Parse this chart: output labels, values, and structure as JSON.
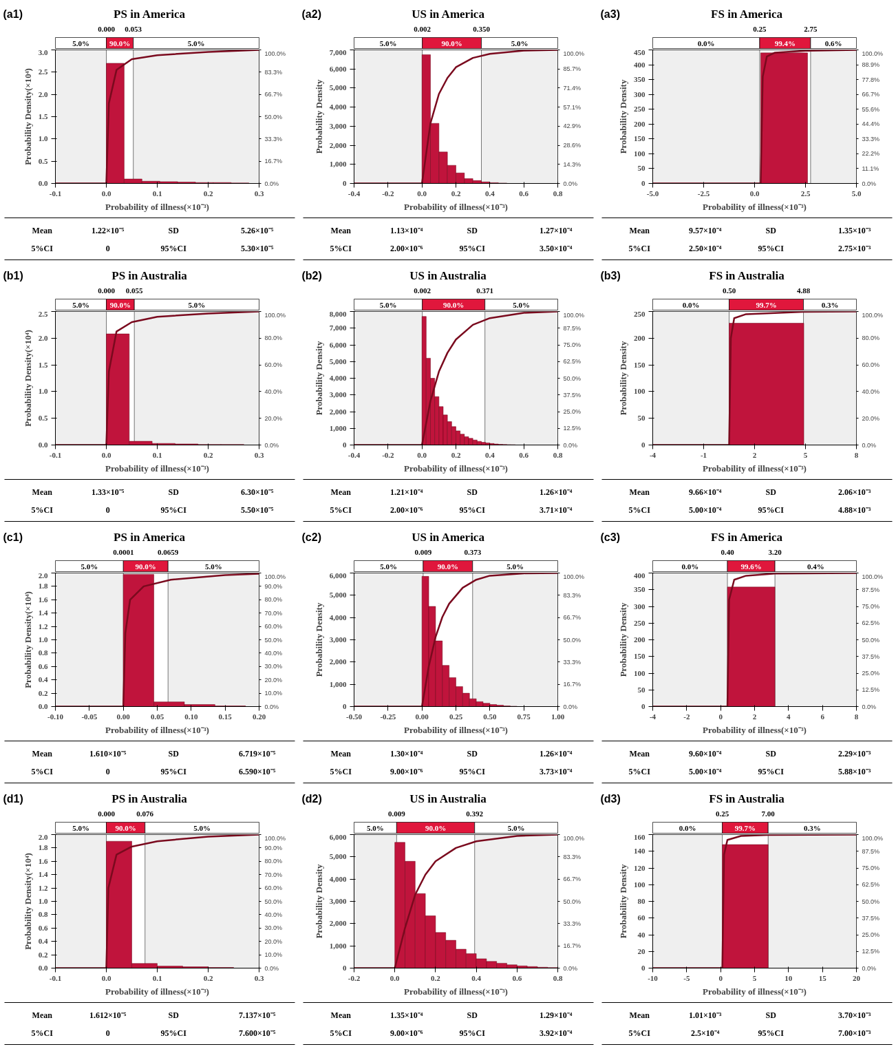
{
  "chart_data": [
    {
      "type": "histogram",
      "title": "PS in America",
      "xlabel": "Probability of illness(×10⁻³)",
      "ylabel": "Probability Density(×10⁴)",
      "annotations": [
        "(a1)",
        "Mean",
        "1.22×10⁻⁵",
        "SD",
        "5.26×10⁻⁵",
        "5%CI",
        "0",
        "95%CI",
        "5.30×10⁻⁵"
      ],
      "xlim": [
        -0.1,
        0.3
      ],
      "xticks": [
        -0.1,
        {
          "value": 0,
          "label": "0.0"
        },
        0.1,
        0.2,
        0.3
      ],
      "ylim": [
        0,
        3.0
      ],
      "yticks": [
        {
          "value": 0,
          "label": "0.0"
        },
        0.5,
        {
          "value": 1,
          "label": "1.0"
        },
        1.5,
        {
          "value": 2,
          "label": "2.0"
        },
        2.5,
        {
          "value": 3,
          "label": "3.0"
        }
      ],
      "y2lim": [
        0,
        100
      ],
      "y2ticks": [
        {
          "value": 0,
          "label": "0.0%"
        },
        {
          "value": 16.7,
          "label": "16.7%"
        },
        {
          "value": 33.3,
          "label": "33.3%"
        },
        {
          "value": 50,
          "label": "50.0%"
        },
        {
          "value": 66.7,
          "label": "66.7%"
        },
        {
          "value": 83.3,
          "label": "83.3%"
        },
        {
          "value": 100,
          "label": "100.0%"
        }
      ],
      "color": "#c0143c",
      "bins": [
        0,
        0.035,
        0.07,
        0.105,
        0.14,
        0.175,
        0.21,
        0.245,
        0.28
      ],
      "values": [
        2.7,
        0.1,
        0.05,
        0.04,
        0.03,
        0.02,
        0.02,
        0.01
      ],
      "series": [
        {
          "type": "line",
          "axis": "y2",
          "color": "#7a0a1e",
          "x": [
            -0.1,
            0,
            0.005,
            0.02,
            0.05,
            0.1,
            0.2,
            0.3
          ],
          "values": [
            0,
            0,
            60,
            85,
            93,
            96,
            98.5,
            100
          ]
        }
      ],
      "ref_lines": [
        {
          "axis": "x",
          "value": 0.0,
          "label": "0.000"
        },
        {
          "axis": "x",
          "value": 0.053,
          "label": "0.053"
        }
      ],
      "bands": [
        {
          "axis": "x",
          "from": -0.1,
          "to": 0.0,
          "label": "5.0%",
          "color": "#efefef"
        },
        {
          "axis": "x",
          "from": 0.0,
          "to": 0.053,
          "label": "90.0%"
        },
        {
          "axis": "x",
          "from": 0.053,
          "to": 0.3,
          "label": "5.0%",
          "color": "#efefef"
        }
      ]
    },
    {
      "type": "histogram",
      "title": "US in America",
      "xlabel": "Probability of illness(×10⁻³)",
      "ylabel": "Probability Density",
      "annotations": [
        "(a2)",
        "Mean",
        "1.13×10⁻⁴",
        "SD",
        "1.27×10⁻⁴",
        "5%CI",
        "2.00×10⁻⁶",
        "95%CI",
        "3.50×10⁻⁴"
      ],
      "xlim": [
        -0.4,
        0.8
      ],
      "xticks": [
        -0.4,
        -0.2,
        {
          "value": 0,
          "label": "0.0"
        },
        0.2,
        0.4,
        0.6,
        0.8
      ],
      "ylim": [
        0,
        7000
      ],
      "yticks": [
        0,
        {
          "value": 1000,
          "label": "1,000"
        },
        {
          "value": 2000,
          "label": "2,000"
        },
        {
          "value": 3000,
          "label": "3,000"
        },
        {
          "value": 4000,
          "label": "4,000"
        },
        {
          "value": 5000,
          "label": "5,000"
        },
        {
          "value": 6000,
          "label": "6,000"
        },
        {
          "value": 7000,
          "label": "7,000"
        }
      ],
      "y2lim": [
        0,
        100
      ],
      "y2ticks": [
        {
          "value": 0,
          "label": "0.0%"
        },
        {
          "value": 14.3,
          "label": "14.3%"
        },
        {
          "value": 28.6,
          "label": "28.6%"
        },
        {
          "value": 42.9,
          "label": "42.9%"
        },
        {
          "value": 57.1,
          "label": "57.1%"
        },
        {
          "value": 71.4,
          "label": "71.4%"
        },
        {
          "value": 85.7,
          "label": "85.7%"
        },
        {
          "value": 100,
          "label": "100.0%"
        }
      ],
      "color": "#c0143c",
      "bins": [
        0,
        0.05,
        0.1,
        0.15,
        0.2,
        0.25,
        0.3,
        0.35,
        0.4,
        0.45,
        0.5,
        0.55,
        0.6
      ],
      "values": [
        6750,
        3150,
        1650,
        950,
        550,
        250,
        150,
        80,
        40,
        20,
        null,
        null
      ],
      "series": [
        {
          "type": "line",
          "axis": "y2",
          "color": "#7a0a1e",
          "x": [
            -0.4,
            0,
            0.05,
            0.1,
            0.15,
            0.2,
            0.3,
            0.4,
            0.6,
            0.8
          ],
          "values": [
            0,
            0,
            45,
            67,
            79,
            87,
            94,
            97,
            99.5,
            100
          ]
        }
      ],
      "ref_lines": [
        {
          "axis": "x",
          "value": 0.002,
          "label": "0.002"
        },
        {
          "axis": "x",
          "value": 0.35,
          "label": "0.350"
        }
      ],
      "bands": [
        {
          "axis": "x",
          "from": -0.4,
          "to": 0.002,
          "label": "5.0%",
          "color": "#efefef"
        },
        {
          "axis": "x",
          "from": 0.002,
          "to": 0.35,
          "label": "90.0%"
        },
        {
          "axis": "x",
          "from": 0.35,
          "to": 0.8,
          "label": "5.0%",
          "color": "#efefef"
        }
      ]
    },
    {
      "type": "histogram",
      "title": "FS in America",
      "xlabel": "Probability of illness(×10⁻³)",
      "ylabel": "Probability Density",
      "annotations": [
        "(a3)",
        "Mean",
        "9.57×10⁻⁴",
        "SD",
        "1.35×10⁻³",
        "5%CI",
        "2.50×10⁻⁴",
        "95%CI",
        "2.75×10⁻³"
      ],
      "xlim": [
        -5,
        5
      ],
      "xticks": [
        {
          "value": -5,
          "label": "-5.0"
        },
        -2.5,
        {
          "value": 0,
          "label": "0.0"
        },
        2.5,
        {
          "value": 5,
          "label": "5.0"
        }
      ],
      "ylim": [
        0,
        450
      ],
      "yticks": [
        0,
        50,
        100,
        150,
        200,
        250,
        300,
        350,
        400,
        450
      ],
      "y2lim": [
        0,
        100
      ],
      "y2ticks": [
        {
          "value": 0,
          "label": "0.0%"
        },
        {
          "value": 11.1,
          "label": "11.1%"
        },
        {
          "value": 22.2,
          "label": "22.2%"
        },
        {
          "value": 33.3,
          "label": "33.3%"
        },
        {
          "value": 44.4,
          "label": "44.4%"
        },
        {
          "value": 55.6,
          "label": "55.6%"
        },
        {
          "value": 66.7,
          "label": "66.7%"
        },
        {
          "value": 77.8,
          "label": "77.8%"
        },
        {
          "value": 88.9,
          "label": "88.9%"
        },
        {
          "value": 100,
          "label": "100.0%"
        }
      ],
      "color": "#c0143c",
      "bins": [
        0.3,
        2.6
      ],
      "values": [
        440
      ],
      "series": [
        {
          "type": "line",
          "axis": "y2",
          "color": "#7a0a1e",
          "x": [
            -5,
            0.3,
            0.4,
            0.6,
            1.0,
            2.5,
            5
          ],
          "values": [
            0,
            0,
            80,
            95,
            98,
            99.4,
            100
          ]
        }
      ],
      "ref_lines": [
        {
          "axis": "x",
          "value": 0.25,
          "label": "0.25"
        },
        {
          "axis": "x",
          "value": 2.75,
          "label": "2.75"
        }
      ],
      "bands": [
        {
          "axis": "x",
          "from": -5,
          "to": 0.25,
          "label": "0.0%",
          "color": "#efefef"
        },
        {
          "axis": "x",
          "from": 0.25,
          "to": 2.75,
          "label": "99.4%"
        },
        {
          "axis": "x",
          "from": 2.75,
          "to": 5,
          "label": "0.6%",
          "color": "#efefef"
        }
      ]
    },
    {
      "type": "histogram",
      "title": "PS in Australia",
      "xlabel": "Probability of illness(×10⁻³)",
      "ylabel": "Probability Density(×10⁴)",
      "annotations": [
        "(b1)",
        "Mean",
        "1.33×10⁻⁵",
        "SD",
        "6.30×10⁻⁵",
        "5%CI",
        "0",
        "95%CI",
        "5.50×10⁻⁵"
      ],
      "xlim": [
        -0.1,
        0.3
      ],
      "xticks": [
        -0.1,
        {
          "value": 0,
          "label": "0.0"
        },
        0.1,
        0.2,
        0.3
      ],
      "ylim": [
        0,
        2.5
      ],
      "yticks": [
        {
          "value": 0,
          "label": "0.0"
        },
        0.5,
        {
          "value": 1,
          "label": "1.0"
        },
        1.5,
        {
          "value": 2,
          "label": "2.0"
        },
        2.5
      ],
      "y2lim": [
        0,
        100
      ],
      "y2ticks": [
        {
          "value": 0,
          "label": "0.0%"
        },
        {
          "value": 20,
          "label": "20.0%"
        },
        {
          "value": 40,
          "label": "40.0%"
        },
        {
          "value": 60,
          "label": "60.0%"
        },
        {
          "value": 80,
          "label": "80.0%"
        },
        {
          "value": 100,
          "label": "100.0%"
        }
      ],
      "color": "#c0143c",
      "bins": [
        0,
        0.045,
        0.09,
        0.135,
        0.18,
        0.225,
        0.27
      ],
      "values": [
        2.08,
        0.07,
        0.03,
        0.02,
        0.01,
        0.01
      ],
      "series": [
        {
          "type": "line",
          "axis": "y2",
          "color": "#7a0a1e",
          "x": [
            -0.1,
            0,
            0.005,
            0.02,
            0.05,
            0.1,
            0.2,
            0.3
          ],
          "values": [
            0,
            0,
            55,
            85,
            92,
            96,
            98.5,
            100
          ]
        }
      ],
      "ref_lines": [
        {
          "axis": "x",
          "value": 0.0,
          "label": "0.000"
        },
        {
          "axis": "x",
          "value": 0.055,
          "label": "0.055"
        }
      ],
      "bands": [
        {
          "axis": "x",
          "from": -0.1,
          "to": 0.0,
          "label": "5.0%",
          "color": "#efefef"
        },
        {
          "axis": "x",
          "from": 0.0,
          "to": 0.055,
          "label": "90.0%"
        },
        {
          "axis": "x",
          "from": 0.055,
          "to": 0.3,
          "label": "5.0%",
          "color": "#efefef"
        }
      ]
    },
    {
      "type": "histogram",
      "title": "US in Australia",
      "xlabel": "Probability of illness(×10⁻³)",
      "ylabel": "Probability Density",
      "annotations": [
        "(b2)",
        "Mean",
        "1.21×10⁻⁴",
        "SD",
        "1.26×10⁻⁴",
        "5%CI",
        "2.00×10⁻⁶",
        "95%CI",
        "3.71×10⁻⁴"
      ],
      "xlim": [
        -0.4,
        0.8
      ],
      "xticks": [
        -0.4,
        -0.2,
        {
          "value": 0,
          "label": "0.0"
        },
        0.2,
        0.4,
        0.6,
        0.8
      ],
      "ylim": [
        0,
        8000
      ],
      "yticks": [
        0,
        {
          "value": 1000,
          "label": "1,000"
        },
        {
          "value": 2000,
          "label": "2,000"
        },
        {
          "value": 3000,
          "label": "3,000"
        },
        {
          "value": 4000,
          "label": "4,000"
        },
        {
          "value": 5000,
          "label": "5,000"
        },
        {
          "value": 6000,
          "label": "6,000"
        },
        {
          "value": 7000,
          "label": "7,000"
        },
        {
          "value": 8000,
          "label": "8,000"
        }
      ],
      "y2lim": [
        0,
        100
      ],
      "y2ticks": [
        {
          "value": 0,
          "label": "0.0%"
        },
        {
          "value": 12.5,
          "label": "12.5%"
        },
        {
          "value": 25,
          "label": "25.0%"
        },
        {
          "value": 37.5,
          "label": "37.5%"
        },
        {
          "value": 50,
          "label": "50.0%"
        },
        {
          "value": 62.5,
          "label": "62.5%"
        },
        {
          "value": 75,
          "label": "75.0%"
        },
        {
          "value": 87.5,
          "label": "87.5%"
        },
        {
          "value": 100,
          "label": "100.0%"
        }
      ],
      "color": "#c0143c",
      "bins": [
        0,
        0.025,
        0.05,
        0.075,
        0.1,
        0.125,
        0.15,
        0.175,
        0.2,
        0.225,
        0.25,
        0.275,
        0.3,
        0.325,
        0.35,
        0.375,
        0.4,
        0.425,
        0.45,
        0.475,
        0.5,
        0.525,
        0.55,
        0.575,
        0.6
      ],
      "values": [
        7700,
        5200,
        4000,
        2900,
        2300,
        1800,
        1400,
        1100,
        850,
        650,
        500,
        400,
        300,
        220,
        160,
        120,
        90,
        60,
        40,
        30,
        20,
        15,
        null,
        null
      ],
      "series": [
        {
          "type": "line",
          "axis": "y2",
          "color": "#7a0a1e",
          "x": [
            -0.4,
            0,
            0.05,
            0.1,
            0.15,
            0.2,
            0.3,
            0.4,
            0.6,
            0.8
          ],
          "values": [
            0,
            0,
            33,
            55,
            69,
            79,
            90,
            95,
            99,
            100
          ]
        }
      ],
      "ref_lines": [
        {
          "axis": "x",
          "value": 0.002,
          "label": "0.002"
        },
        {
          "axis": "x",
          "value": 0.371,
          "label": "0.371"
        }
      ],
      "bands": [
        {
          "axis": "x",
          "from": -0.4,
          "to": 0.002,
          "label": "5.0%",
          "color": "#efefef"
        },
        {
          "axis": "x",
          "from": 0.002,
          "to": 0.371,
          "label": "90.0%"
        },
        {
          "axis": "x",
          "from": 0.371,
          "to": 0.8,
          "label": "5.0%",
          "color": "#efefef"
        }
      ]
    },
    {
      "type": "histogram",
      "title": "FS in Australia",
      "xlabel": "Probability of illness(×10⁻³)",
      "ylabel": "Probability Density",
      "annotations": [
        "(b3)",
        "Mean",
        "9.66×10⁻⁴",
        "SD",
        "2.06×10⁻³",
        "5%CI",
        "5.00×10⁻⁴",
        "95%CI",
        "4.88×10⁻³"
      ],
      "xlim": [
        -4,
        8
      ],
      "xticks": [
        -4,
        -1,
        2,
        5,
        8
      ],
      "ylim": [
        0,
        250
      ],
      "yticks": [
        0,
        50,
        100,
        150,
        200,
        250
      ],
      "y2lim": [
        0,
        100
      ],
      "y2ticks": [
        {
          "value": 0,
          "label": "0.0%"
        },
        {
          "value": 20,
          "label": "20.0%"
        },
        {
          "value": 40,
          "label": "40.0%"
        },
        {
          "value": 60,
          "label": "60.0%"
        },
        {
          "value": 80,
          "label": "80.0%"
        },
        {
          "value": 100,
          "label": "100.0%"
        }
      ],
      "color": "#c0143c",
      "bins": [
        0.5,
        4.9
      ],
      "values": [
        228
      ],
      "series": [
        {
          "type": "line",
          "axis": "y2",
          "color": "#7a0a1e",
          "x": [
            -4,
            0.5,
            0.6,
            0.8,
            1.5,
            4.88,
            8
          ],
          "values": [
            0,
            0,
            80,
            95,
            98,
            99.7,
            100
          ]
        }
      ],
      "ref_lines": [
        {
          "axis": "x",
          "value": 0.5,
          "label": "0.50"
        },
        {
          "axis": "x",
          "value": 4.88,
          "label": "4.88"
        }
      ],
      "bands": [
        {
          "axis": "x",
          "from": -4,
          "to": 0.5,
          "label": "0.0%",
          "color": "#efefef"
        },
        {
          "axis": "x",
          "from": 0.5,
          "to": 4.88,
          "label": "99.7%"
        },
        {
          "axis": "x",
          "from": 4.88,
          "to": 8,
          "label": "0.3%",
          "color": "#efefef"
        }
      ]
    },
    {
      "type": "histogram",
      "title": "PS in America",
      "xlabel": "Probability of illness(×10⁻³)",
      "ylabel": "Probability Density(×10⁴)",
      "annotations": [
        "(c1)",
        "Mean",
        "1.610×10⁻⁵",
        "SD",
        "6.719×10⁻⁵",
        "5%CI",
        "0",
        "95%CI",
        "6.590×10⁻⁵"
      ],
      "xlim": [
        -0.1,
        0.2
      ],
      "xticks": [
        {
          "value": -0.1,
          "label": "-0.10"
        },
        {
          "value": -0.05,
          "label": "-0.05"
        },
        {
          "value": 0,
          "label": "0.00"
        },
        {
          "value": 0.05,
          "label": "0.05"
        },
        {
          "value": 0.1,
          "label": "0.10"
        },
        {
          "value": 0.15,
          "label": "0.15"
        },
        {
          "value": 0.2,
          "label": "0.20"
        }
      ],
      "ylim": [
        0,
        2.0
      ],
      "yticks": [
        {
          "value": 0,
          "label": "0.0"
        },
        0.2,
        0.4,
        0.6,
        0.8,
        {
          "value": 1,
          "label": "1.0"
        },
        1.2,
        1.4,
        1.6,
        1.8,
        {
          "value": 2,
          "label": "2.0"
        }
      ],
      "y2lim": [
        0,
        100
      ],
      "y2ticks": [
        {
          "value": 0,
          "label": "0.0%"
        },
        {
          "value": 10,
          "label": "10.0%"
        },
        {
          "value": 20,
          "label": "20.0%"
        },
        {
          "value": 30,
          "label": "30.0%"
        },
        {
          "value": 40,
          "label": "40.0%"
        },
        {
          "value": 50,
          "label": "50.0%"
        },
        {
          "value": 60,
          "label": "60.0%"
        },
        {
          "value": 70,
          "label": "70.0%"
        },
        {
          "value": 80,
          "label": "80.0%"
        },
        {
          "value": 90,
          "label": "90.0%"
        },
        {
          "value": 100,
          "label": "100.0%"
        }
      ],
      "color": "#c0143c",
      "bins": [
        0,
        0.045,
        0.09,
        0.135,
        0.18
      ],
      "values": [
        1.98,
        0.07,
        0.03,
        0.01
      ],
      "series": [
        {
          "type": "line",
          "axis": "y2",
          "color": "#7a0a1e",
          "x": [
            -0.1,
            0,
            0.003,
            0.01,
            0.03,
            0.07,
            0.15,
            0.2
          ],
          "values": [
            0,
            0,
            55,
            80,
            90,
            95,
            98.5,
            99.5
          ]
        }
      ],
      "ref_lines": [
        {
          "axis": "x",
          "value": 0.0001,
          "label": "0.0001"
        },
        {
          "axis": "x",
          "value": 0.0659,
          "label": "0.0659"
        }
      ],
      "bands": [
        {
          "axis": "x",
          "from": -0.1,
          "to": 0.0001,
          "label": "5.0%",
          "color": "#efefef"
        },
        {
          "axis": "x",
          "from": 0.0001,
          "to": 0.0659,
          "label": "90.0%"
        },
        {
          "axis": "x",
          "from": 0.0659,
          "to": 0.2,
          "label": "5.0%",
          "color": "#efefef"
        }
      ]
    },
    {
      "type": "histogram",
      "title": "US in America",
      "xlabel": "Probability of illness(×10⁻³)",
      "ylabel": "Probability Density",
      "annotations": [
        "(c2)",
        "Mean",
        "1.30×10⁻⁴",
        "SD",
        "1.26×10⁻⁴",
        "5%CI",
        "9.00×10⁻⁶",
        "95%CI",
        "3.73×10⁻⁴"
      ],
      "xlim": [
        -0.5,
        1.0
      ],
      "xticks": [
        {
          "value": -0.5,
          "label": "-0.50"
        },
        {
          "value": -0.25,
          "label": "-0.25"
        },
        {
          "value": 0,
          "label": "0.00"
        },
        {
          "value": 0.25,
          "label": "0.25"
        },
        {
          "value": 0.5,
          "label": "0.50"
        },
        {
          "value": 0.75,
          "label": "0.75"
        },
        {
          "value": 1.0,
          "label": "1.00"
        }
      ],
      "ylim": [
        0,
        6000
      ],
      "yticks": [
        0,
        {
          "value": 1000,
          "label": "1,000"
        },
        {
          "value": 2000,
          "label": "2,000"
        },
        {
          "value": 3000,
          "label": "3,000"
        },
        {
          "value": 4000,
          "label": "4,000"
        },
        {
          "value": 5000,
          "label": "5,000"
        },
        {
          "value": 6000,
          "label": "6,000"
        }
      ],
      "y2lim": [
        0,
        100
      ],
      "y2ticks": [
        {
          "value": 0,
          "label": "0.0%"
        },
        {
          "value": 16.7,
          "label": "16.7%"
        },
        {
          "value": 33.3,
          "label": "33.3%"
        },
        {
          "value": 50,
          "label": "50.0%"
        },
        {
          "value": 66.7,
          "label": "66.7%"
        },
        {
          "value": 83.3,
          "label": "83.3%"
        },
        {
          "value": 100,
          "label": "100.0%"
        }
      ],
      "color": "#c0143c",
      "bins": [
        0,
        0.05,
        0.1,
        0.15,
        0.2,
        0.25,
        0.3,
        0.35,
        0.4,
        0.45,
        0.5,
        0.55,
        0.6,
        0.65,
        0.7
      ],
      "values": [
        5850,
        4500,
        2950,
        1850,
        1300,
        900,
        600,
        350,
        220,
        150,
        90,
        60,
        30,
        15
      ],
      "series": [
        {
          "type": "line",
          "axis": "y2",
          "color": "#7a0a1e",
          "x": [
            -0.5,
            0,
            0.05,
            0.1,
            0.15,
            0.2,
            0.3,
            0.4,
            0.5,
            0.75,
            1.0
          ],
          "values": [
            0,
            0,
            30,
            52,
            67,
            77,
            89,
            95,
            98,
            99.8,
            100
          ]
        }
      ],
      "ref_lines": [
        {
          "axis": "x",
          "value": 0.009,
          "label": "0.009"
        },
        {
          "axis": "x",
          "value": 0.373,
          "label": "0.373"
        }
      ],
      "bands": [
        {
          "axis": "x",
          "from": -0.5,
          "to": 0.009,
          "label": "5.0%",
          "color": "#efefef"
        },
        {
          "axis": "x",
          "from": 0.009,
          "to": 0.373,
          "label": "90.0%"
        },
        {
          "axis": "x",
          "from": 0.373,
          "to": 1.0,
          "label": "5.0%",
          "color": "#efefef"
        }
      ]
    },
    {
      "type": "histogram",
      "title": "FS in America",
      "xlabel": "Probability of illness(×10⁻³)",
      "ylabel": "Probability Density",
      "annotations": [
        "(c3)",
        "Mean",
        "9.60×10⁻⁴",
        "SD",
        "2.29×10⁻³",
        "5%CI",
        "5.00×10⁻⁴",
        "95%CI",
        "5.88×10⁻³"
      ],
      "xlim": [
        -4,
        8
      ],
      "xticks": [
        -4,
        -2,
        0,
        2,
        4,
        6,
        8
      ],
      "ylim": [
        0,
        400
      ],
      "yticks": [
        0,
        50,
        100,
        150,
        200,
        250,
        300,
        350,
        400
      ],
      "y2lim": [
        0,
        100
      ],
      "y2ticks": [
        {
          "value": 0,
          "label": "0.0%"
        },
        {
          "value": 12.5,
          "label": "12.5%"
        },
        {
          "value": 25,
          "label": "25.0%"
        },
        {
          "value": 37.5,
          "label": "37.5%"
        },
        {
          "value": 50,
          "label": "50.0%"
        },
        {
          "value": 62.5,
          "label": "62.5%"
        },
        {
          "value": 75,
          "label": "75.0%"
        },
        {
          "value": 87.5,
          "label": "87.5%"
        },
        {
          "value": 100,
          "label": "100.0%"
        }
      ],
      "color": "#c0143c",
      "bins": [
        0.4,
        3.2
      ],
      "values": [
        358
      ],
      "series": [
        {
          "type": "line",
          "axis": "y2",
          "color": "#7a0a1e",
          "x": [
            -4,
            0.4,
            0.5,
            0.8,
            1.5,
            3.2,
            8
          ],
          "values": [
            0,
            0,
            80,
            95,
            98,
            99.6,
            100
          ]
        }
      ],
      "ref_lines": [
        {
          "axis": "x",
          "value": 0.4,
          "label": "0.40"
        },
        {
          "axis": "x",
          "value": 3.2,
          "label": "3.20"
        }
      ],
      "bands": [
        {
          "axis": "x",
          "from": -4,
          "to": 0.4,
          "label": "0.0%",
          "color": "#efefef"
        },
        {
          "axis": "x",
          "from": 0.4,
          "to": 3.2,
          "label": "99.6%"
        },
        {
          "axis": "x",
          "from": 3.2,
          "to": 8,
          "label": "0.4%",
          "color": "#efefef"
        }
      ]
    },
    {
      "type": "histogram",
      "title": "PS in Australia",
      "xlabel": "Probability of illness(×10⁻³)",
      "ylabel": "Probability Density(×10⁴)",
      "annotations": [
        "(d1)",
        "Mean",
        "1.612×10⁻⁵",
        "SD",
        "7.137×10⁻⁵",
        "5%CI",
        "0",
        "95%CI",
        "7.600×10⁻⁵"
      ],
      "xlim": [
        -0.1,
        0.3
      ],
      "xticks": [
        -0.1,
        {
          "value": 0,
          "label": "0.0"
        },
        0.1,
        0.2,
        0.3
      ],
      "ylim": [
        0,
        2.0
      ],
      "yticks": [
        {
          "value": 0,
          "label": "0.0"
        },
        0.2,
        0.4,
        0.6,
        0.8,
        {
          "value": 1,
          "label": "1.0"
        },
        1.2,
        1.4,
        1.6,
        1.8,
        {
          "value": 2,
          "label": "2.0"
        }
      ],
      "y2lim": [
        0,
        100
      ],
      "y2ticks": [
        {
          "value": 0,
          "label": "0.0%"
        },
        {
          "value": 10,
          "label": "10.0%"
        },
        {
          "value": 20,
          "label": "20.0%"
        },
        {
          "value": 30,
          "label": "30.0%"
        },
        {
          "value": 40,
          "label": "40.0%"
        },
        {
          "value": 50,
          "label": "50.0%"
        },
        {
          "value": 60,
          "label": "60.0%"
        },
        {
          "value": 70,
          "label": "70.0%"
        },
        {
          "value": 80,
          "label": "80.0%"
        },
        {
          "value": 90,
          "label": "90.0%"
        },
        {
          "value": 100,
          "label": "100.0%"
        }
      ],
      "color": "#c0143c",
      "bins": [
        0,
        0.05,
        0.1,
        0.15,
        0.2,
        0.25
      ],
      "values": [
        1.9,
        0.07,
        0.03,
        0.02,
        0.01
      ],
      "series": [
        {
          "type": "line",
          "axis": "y2",
          "color": "#7a0a1e",
          "x": [
            -0.1,
            0,
            0.004,
            0.02,
            0.05,
            0.1,
            0.2,
            0.3
          ],
          "values": [
            0,
            0,
            60,
            85,
            91,
            95,
            98.5,
            100
          ]
        }
      ],
      "ref_lines": [
        {
          "axis": "x",
          "value": 0.0,
          "label": "0.000"
        },
        {
          "axis": "x",
          "value": 0.076,
          "label": "0.076"
        }
      ],
      "bands": [
        {
          "axis": "x",
          "from": -0.1,
          "to": 0.0,
          "label": "5.0%",
          "color": "#efefef"
        },
        {
          "axis": "x",
          "from": 0.0,
          "to": 0.076,
          "label": "90.0%"
        },
        {
          "axis": "x",
          "from": 0.076,
          "to": 0.3,
          "label": "5.0%",
          "color": "#efefef"
        }
      ]
    },
    {
      "type": "histogram",
      "title": "US in Australia",
      "xlabel": "Probability of illness(×10⁻³)",
      "ylabel": "Probability Density",
      "annotations": [
        "(d2)",
        "Mean",
        "1.35×10⁻⁴",
        "SD",
        "1.29×10⁻⁴",
        "5%CI",
        "9.00×10⁻⁶",
        "95%CI",
        "3.92×10⁻⁴"
      ],
      "xlim": [
        -0.2,
        0.8
      ],
      "xticks": [
        -0.2,
        {
          "value": 0,
          "label": "0.0"
        },
        0.2,
        0.4,
        0.6,
        0.8
      ],
      "ylim": [
        0,
        6000
      ],
      "yticks": [
        0,
        {
          "value": 1000,
          "label": "1,000"
        },
        {
          "value": 2000,
          "label": "2,000"
        },
        {
          "value": 3000,
          "label": "3,000"
        },
        {
          "value": 4000,
          "label": "4,000"
        },
        {
          "value": 5000,
          "label": "5,000"
        },
        {
          "value": 6000,
          "label": "6,000"
        }
      ],
      "y2lim": [
        0,
        100
      ],
      "y2ticks": [
        {
          "value": 0,
          "label": "0.0%"
        },
        {
          "value": 16.7,
          "label": "16.7%"
        },
        {
          "value": 33.3,
          "label": "33.3%"
        },
        {
          "value": 50,
          "label": "50.0%"
        },
        {
          "value": 66.7,
          "label": "66.7%"
        },
        {
          "value": 83.3,
          "label": "83.3%"
        },
        {
          "value": 100,
          "label": "100.0%"
        }
      ],
      "color": "#c0143c",
      "bins": [
        0,
        0.05,
        0.1,
        0.15,
        0.2,
        0.25,
        0.3,
        0.35,
        0.4,
        0.45,
        0.5,
        0.55,
        0.6,
        0.65,
        0.7,
        0.75,
        0.8
      ],
      "values": [
        5650,
        4800,
        3350,
        2350,
        1600,
        1250,
        850,
        650,
        420,
        300,
        220,
        150,
        100,
        70,
        40,
        25
      ],
      "series": [
        {
          "type": "line",
          "axis": "y2",
          "color": "#7a0a1e",
          "x": [
            -0.2,
            0,
            0.05,
            0.1,
            0.15,
            0.2,
            0.3,
            0.4,
            0.6,
            0.8
          ],
          "values": [
            0,
            0,
            30,
            55,
            70,
            80,
            90,
            95,
            99,
            100
          ]
        }
      ],
      "ref_lines": [
        {
          "axis": "x",
          "value": 0.009,
          "label": "0.009"
        },
        {
          "axis": "x",
          "value": 0.392,
          "label": "0.392"
        }
      ],
      "bands": [
        {
          "axis": "x",
          "from": -0.2,
          "to": 0.009,
          "label": "5.0%",
          "color": "#efefef"
        },
        {
          "axis": "x",
          "from": 0.009,
          "to": 0.392,
          "label": "90.0%"
        },
        {
          "axis": "x",
          "from": 0.392,
          "to": 0.8,
          "label": "5.0%",
          "color": "#efefef"
        }
      ]
    },
    {
      "type": "histogram",
      "title": "FS in Australia",
      "xlabel": "Probability of illness(×10⁻³)",
      "ylabel": "Probability Density",
      "annotations": [
        "(d3)",
        "Mean",
        "1.01×10⁻³",
        "SD",
        "3.70×10⁻³",
        "5%CI",
        "2.5×10⁻⁴",
        "95%CI",
        "7.00×10⁻³"
      ],
      "xlim": [
        -10,
        20
      ],
      "xticks": [
        -10,
        -5,
        0,
        5,
        10,
        15,
        20
      ],
      "ylim": [
        0,
        160
      ],
      "yticks": [
        0,
        20,
        40,
        60,
        80,
        100,
        120,
        140,
        160
      ],
      "y2lim": [
        0,
        100
      ],
      "y2ticks": [
        {
          "value": 0,
          "label": "0.0%"
        },
        {
          "value": 12.5,
          "label": "12.5%"
        },
        {
          "value": 25,
          "label": "25.0%"
        },
        {
          "value": 37.5,
          "label": "37.5%"
        },
        {
          "value": 50,
          "label": "50.0%"
        },
        {
          "value": 62.5,
          "label": "62.5%"
        },
        {
          "value": 75,
          "label": "75.0%"
        },
        {
          "value": 87.5,
          "label": "87.5%"
        },
        {
          "value": 100,
          "label": "100.0%"
        }
      ],
      "color": "#c0143c",
      "bins": [
        0.25,
        7.0
      ],
      "values": [
        148
      ],
      "series": [
        {
          "type": "line",
          "axis": "y2",
          "color": "#7a0a1e",
          "x": [
            -10,
            0.25,
            0.5,
            1,
            3,
            7,
            20
          ],
          "values": [
            0,
            0,
            85,
            96,
            99,
            99.7,
            100
          ]
        }
      ],
      "ref_lines": [
        {
          "axis": "x",
          "value": 0.25,
          "label": "0.25"
        },
        {
          "axis": "x",
          "value": 7.0,
          "label": "7.00"
        }
      ],
      "bands": [
        {
          "axis": "x",
          "from": -10,
          "to": 0.25,
          "label": "0.0%",
          "color": "#efefef"
        },
        {
          "axis": "x",
          "from": 0.25,
          "to": 7.0,
          "label": "99.7%"
        },
        {
          "axis": "x",
          "from": 7.0,
          "to": 20,
          "label": "0.3%",
          "color": "#efefef"
        }
      ]
    }
  ]
}
